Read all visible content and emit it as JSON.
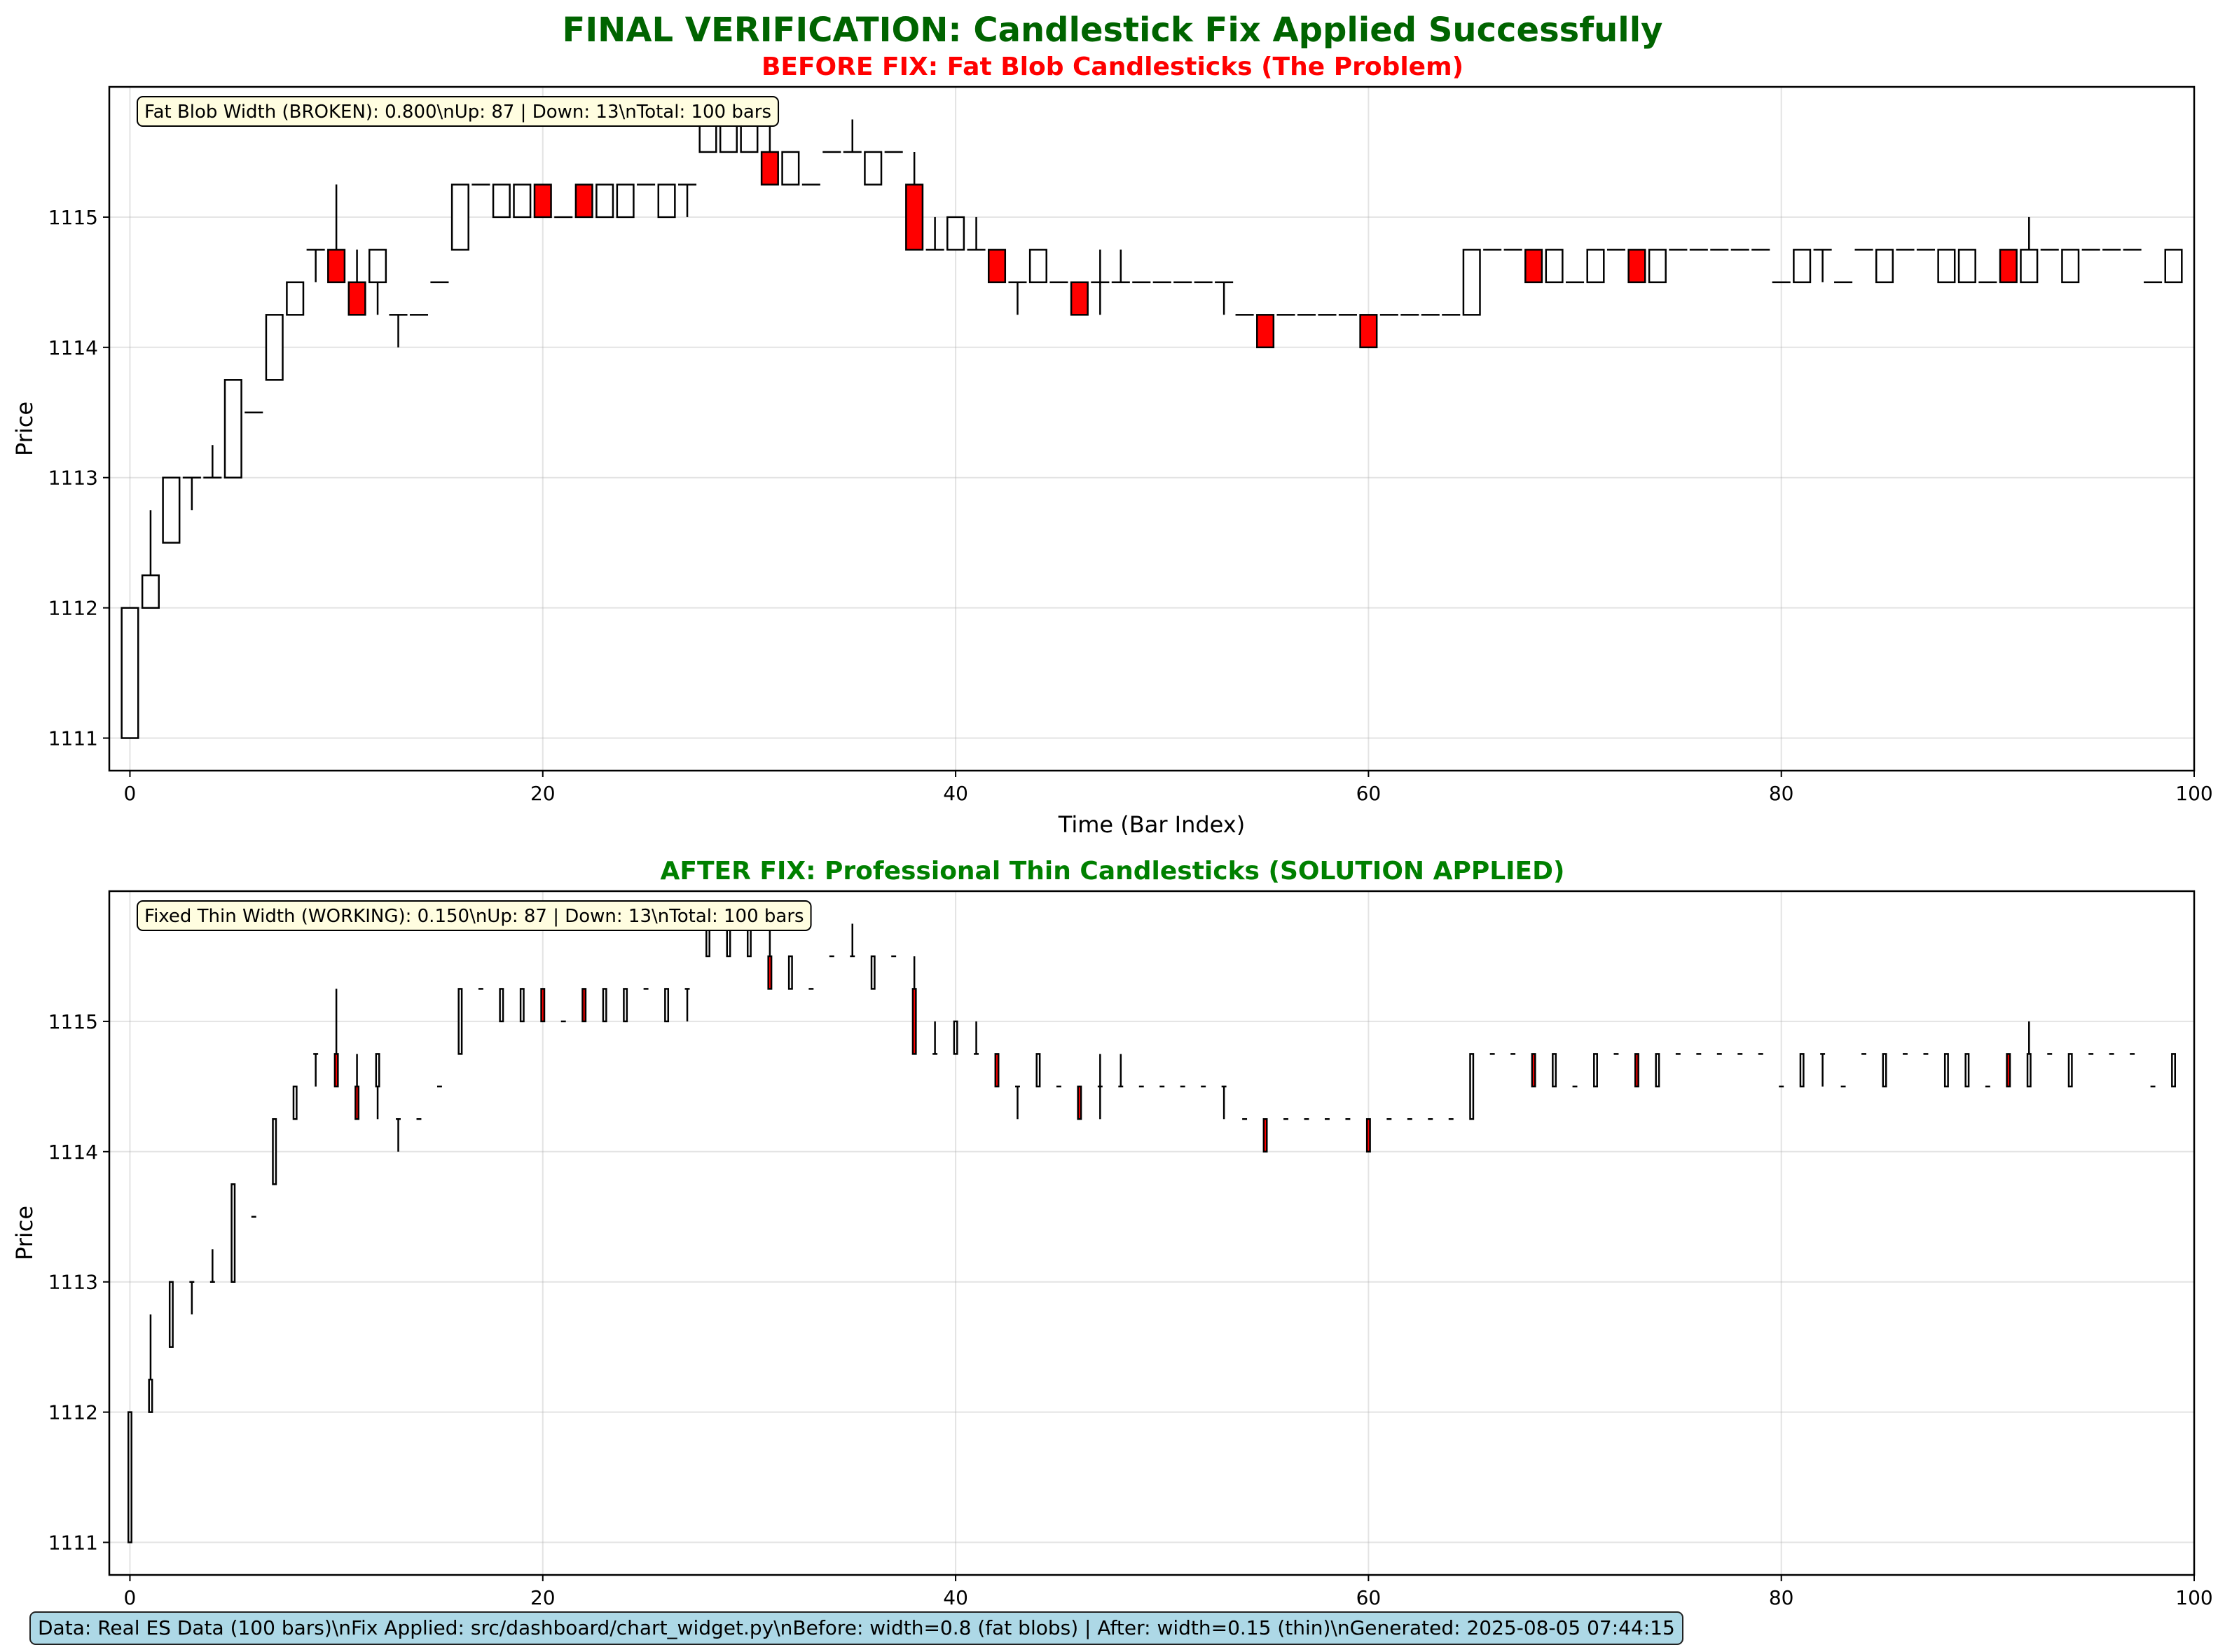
{
  "title": "FINAL VERIFICATION: Candlestick Fix Applied Successfully",
  "footer_note": "Data: Real ES Data (100 bars)\\nFix Applied: src/dashboard/chart_widget.py\\nBefore: width=0.8 (fat blobs) | After: width=0.15 (thin)\\nGenerated: 2025-08-05 07:44:15",
  "colors": {
    "suptitle": "#006400",
    "before_title": "#ff0000",
    "after_title": "#008000",
    "up_fill": "#ffffff",
    "down_fill": "#ff0000",
    "edge": "#000000",
    "info_box": "#fffde0",
    "footer_box": "#add8e6"
  },
  "chart_data": [
    {
      "type": "candlestick",
      "title": "BEFORE FIX: Fat Blob Candlesticks (The Problem)",
      "xlabel": "Time (Bar Index)",
      "ylabel": "Price",
      "xlim": [
        -1,
        100
      ],
      "ylim": [
        1110.75,
        1116
      ],
      "xticks": [
        0,
        20,
        40,
        60,
        80,
        100
      ],
      "yticks": [
        1111,
        1112,
        1113,
        1114,
        1115
      ],
      "grid": true,
      "candle_width": 0.8,
      "info_box": "Fat Blob Width (BROKEN): 0.800\\nUp: 87 | Down: 13\\nTotal: 100 bars"
    },
    {
      "type": "candlestick",
      "title": "AFTER FIX: Professional Thin Candlesticks (SOLUTION APPLIED)",
      "xlabel": "Time (Bar Index)",
      "ylabel": "Price",
      "xlim": [
        -1,
        100
      ],
      "ylim": [
        1110.75,
        1116
      ],
      "xticks": [
        0,
        20,
        40,
        60,
        80,
        100
      ],
      "yticks": [
        1111,
        1112,
        1113,
        1114,
        1115
      ],
      "grid": true,
      "candle_width": 0.15,
      "info_box": "Fixed Thin Width (WORKING): 0.150\\nUp: 87 | Down: 13\\nTotal: 100 bars"
    }
  ],
  "candles": {
    "columns": [
      "open",
      "high",
      "low",
      "close"
    ],
    "bars": [
      [
        1111,
        1112,
        1111,
        1112
      ],
      [
        1112,
        1112.75,
        1112,
        1112.25
      ],
      [
        1112.5,
        1113,
        1112.5,
        1113
      ],
      [
        1113,
        1113,
        1112.75,
        1113
      ],
      [
        1113,
        1113.25,
        1113,
        1113
      ],
      [
        1113,
        1113.75,
        1113,
        1113.75
      ],
      [
        1113.5,
        1113.5,
        1113.5,
        1113.5
      ],
      [
        1113.75,
        1114.25,
        1113.75,
        1114.25
      ],
      [
        1114.25,
        1114.5,
        1114.25,
        1114.5
      ],
      [
        1114.75,
        1114.75,
        1114.5,
        1114.75
      ],
      [
        1114.75,
        1115.25,
        1114.5,
        1114.5
      ],
      [
        1114.5,
        1114.75,
        1114.25,
        1114.25
      ],
      [
        1114.5,
        1114.75,
        1114.25,
        1114.75
      ],
      [
        1114.25,
        1114.25,
        1114,
        1114.25
      ],
      [
        1114.25,
        1114.25,
        1114.25,
        1114.25
      ],
      [
        1114.5,
        1114.5,
        1114.5,
        1114.5
      ],
      [
        1114.75,
        1115.25,
        1114.75,
        1115.25
      ],
      [
        1115.25,
        1115.25,
        1115.25,
        1115.25
      ],
      [
        1115,
        1115.25,
        1115,
        1115.25
      ],
      [
        1115,
        1115.25,
        1115,
        1115.25
      ],
      [
        1115.25,
        1115.25,
        1115,
        1115
      ],
      [
        1115,
        1115,
        1115,
        1115
      ],
      [
        1115.25,
        1115.25,
        1115,
        1115
      ],
      [
        1115,
        1115.25,
        1115,
        1115.25
      ],
      [
        1115,
        1115.25,
        1115,
        1115.25
      ],
      [
        1115.25,
        1115.25,
        1115.25,
        1115.25
      ],
      [
        1115,
        1115.25,
        1115,
        1115.25
      ],
      [
        1115.25,
        1115.25,
        1115,
        1115.25
      ],
      [
        1115.5,
        1115.75,
        1115.5,
        1115.75
      ],
      [
        1115.5,
        1115.75,
        1115.5,
        1115.75
      ],
      [
        1115.5,
        1115.75,
        1115.5,
        1115.75
      ],
      [
        1115.5,
        1115.75,
        1115.25,
        1115.25
      ],
      [
        1115.25,
        1115.5,
        1115.25,
        1115.5
      ],
      [
        1115.25,
        1115.25,
        1115.25,
        1115.25
      ],
      [
        1115.5,
        1115.5,
        1115.5,
        1115.5
      ],
      [
        1115.5,
        1115.75,
        1115.5,
        1115.5
      ],
      [
        1115.25,
        1115.5,
        1115.25,
        1115.5
      ],
      [
        1115.5,
        1115.5,
        1115.5,
        1115.5
      ],
      [
        1115.25,
        1115.5,
        1114.75,
        1114.75
      ],
      [
        1114.75,
        1115,
        1114.75,
        1114.75
      ],
      [
        1114.75,
        1115,
        1114.75,
        1115
      ],
      [
        1114.75,
        1115,
        1114.75,
        1114.75
      ],
      [
        1114.75,
        1114.75,
        1114.5,
        1114.5
      ],
      [
        1114.5,
        1114.5,
        1114.25,
        1114.5
      ],
      [
        1114.5,
        1114.75,
        1114.5,
        1114.75
      ],
      [
        1114.5,
        1114.5,
        1114.5,
        1114.5
      ],
      [
        1114.5,
        1114.5,
        1114.25,
        1114.25
      ],
      [
        1114.5,
        1114.75,
        1114.25,
        1114.5
      ],
      [
        1114.5,
        1114.75,
        1114.5,
        1114.5
      ],
      [
        1114.5,
        1114.5,
        1114.5,
        1114.5
      ],
      [
        1114.5,
        1114.5,
        1114.5,
        1114.5
      ],
      [
        1114.5,
        1114.5,
        1114.5,
        1114.5
      ],
      [
        1114.5,
        1114.5,
        1114.5,
        1114.5
      ],
      [
        1114.5,
        1114.5,
        1114.25,
        1114.5
      ],
      [
        1114.25,
        1114.25,
        1114.25,
        1114.25
      ],
      [
        1114.25,
        1114.25,
        1114,
        1114
      ],
      [
        1114.25,
        1114.25,
        1114.25,
        1114.25
      ],
      [
        1114.25,
        1114.25,
        1114.25,
        1114.25
      ],
      [
        1114.25,
        1114.25,
        1114.25,
        1114.25
      ],
      [
        1114.25,
        1114.25,
        1114.25,
        1114.25
      ],
      [
        1114.25,
        1114.25,
        1114,
        1114
      ],
      [
        1114.25,
        1114.25,
        1114.25,
        1114.25
      ],
      [
        1114.25,
        1114.25,
        1114.25,
        1114.25
      ],
      [
        1114.25,
        1114.25,
        1114.25,
        1114.25
      ],
      [
        1114.25,
        1114.25,
        1114.25,
        1114.25
      ],
      [
        1114.25,
        1114.75,
        1114.25,
        1114.75
      ],
      [
        1114.75,
        1114.75,
        1114.75,
        1114.75
      ],
      [
        1114.75,
        1114.75,
        1114.75,
        1114.75
      ],
      [
        1114.75,
        1114.75,
        1114.5,
        1114.5
      ],
      [
        1114.5,
        1114.75,
        1114.5,
        1114.75
      ],
      [
        1114.5,
        1114.5,
        1114.5,
        1114.5
      ],
      [
        1114.5,
        1114.75,
        1114.5,
        1114.75
      ],
      [
        1114.75,
        1114.75,
        1114.75,
        1114.75
      ],
      [
        1114.75,
        1114.75,
        1114.5,
        1114.5
      ],
      [
        1114.5,
        1114.75,
        1114.5,
        1114.75
      ],
      [
        1114.75,
        1114.75,
        1114.75,
        1114.75
      ],
      [
        1114.75,
        1114.75,
        1114.75,
        1114.75
      ],
      [
        1114.75,
        1114.75,
        1114.75,
        1114.75
      ],
      [
        1114.75,
        1114.75,
        1114.75,
        1114.75
      ],
      [
        1114.75,
        1114.75,
        1114.75,
        1114.75
      ],
      [
        1114.5,
        1114.5,
        1114.5,
        1114.5
      ],
      [
        1114.5,
        1114.75,
        1114.5,
        1114.75
      ],
      [
        1114.75,
        1114.75,
        1114.5,
        1114.75
      ],
      [
        1114.5,
        1114.5,
        1114.5,
        1114.5
      ],
      [
        1114.75,
        1114.75,
        1114.75,
        1114.75
      ],
      [
        1114.5,
        1114.75,
        1114.5,
        1114.75
      ],
      [
        1114.75,
        1114.75,
        1114.75,
        1114.75
      ],
      [
        1114.75,
        1114.75,
        1114.75,
        1114.75
      ],
      [
        1114.5,
        1114.75,
        1114.5,
        1114.75
      ],
      [
        1114.5,
        1114.75,
        1114.5,
        1114.75
      ],
      [
        1114.5,
        1114.5,
        1114.5,
        1114.5
      ],
      [
        1114.75,
        1114.75,
        1114.5,
        1114.5
      ],
      [
        1114.5,
        1115,
        1114.5,
        1114.75
      ],
      [
        1114.75,
        1114.75,
        1114.75,
        1114.75
      ],
      [
        1114.5,
        1114.75,
        1114.5,
        1114.75
      ],
      [
        1114.75,
        1114.75,
        1114.75,
        1114.75
      ],
      [
        1114.75,
        1114.75,
        1114.75,
        1114.75
      ],
      [
        1114.75,
        1114.75,
        1114.75,
        1114.75
      ],
      [
        1114.5,
        1114.5,
        1114.5,
        1114.5
      ],
      [
        1114.5,
        1114.75,
        1114.5,
        1114.75
      ]
    ]
  }
}
